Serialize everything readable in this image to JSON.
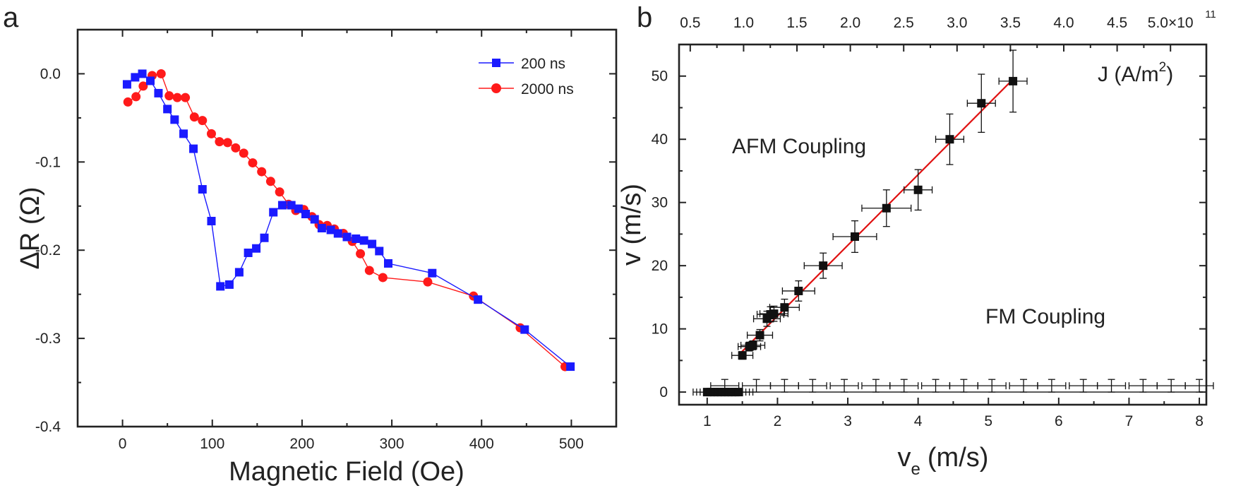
{
  "chart_data": [
    {
      "panel": "a",
      "type": "line",
      "xlabel": "Magnetic Field (Oe)",
      "ylabel": "ΔR (Ω)",
      "xlim": [
        -50,
        550
      ],
      "ylim": [
        -0.4,
        0.05
      ],
      "xticks": [
        0,
        100,
        200,
        300,
        400,
        500
      ],
      "yticks": [
        0.0,
        -0.1,
        -0.2,
        -0.3,
        -0.4
      ],
      "ytick_labels": [
        "0.0",
        "-0.1",
        "-0.2",
        "-0.3",
        "-0.4"
      ],
      "legend_position": "top-right",
      "series": [
        {
          "name": "200 ns",
          "color": "#1a1aff",
          "marker": "square",
          "x": [
            5,
            14,
            22,
            31,
            40,
            50,
            58,
            68,
            79,
            89,
            99,
            109,
            119,
            130,
            140,
            149,
            158,
            168,
            178,
            188,
            196,
            204,
            214,
            222,
            232,
            240,
            250,
            260,
            269,
            278,
            286,
            296,
            345,
            396,
            448,
            499
          ],
          "y": [
            -0.012,
            -0.004,
            0.0,
            -0.008,
            -0.022,
            -0.04,
            -0.052,
            -0.068,
            -0.085,
            -0.131,
            -0.167,
            -0.241,
            -0.239,
            -0.225,
            -0.203,
            -0.198,
            -0.186,
            -0.157,
            -0.149,
            -0.149,
            -0.153,
            -0.159,
            -0.165,
            -0.175,
            -0.177,
            -0.181,
            -0.185,
            -0.187,
            -0.189,
            -0.193,
            -0.201,
            -0.215,
            -0.226,
            -0.256,
            -0.29,
            -0.332
          ]
        },
        {
          "name": "2000 ns",
          "color": "#ff1a1a",
          "marker": "circle",
          "x": [
            6,
            15,
            23,
            33,
            43,
            52,
            61,
            70,
            80,
            89,
            99,
            108,
            117,
            126,
            135,
            145,
            155,
            165,
            175,
            185,
            193,
            202,
            211,
            219,
            228,
            236,
            246,
            256,
            265,
            275,
            290,
            340,
            391,
            443,
            493
          ],
          "y": [
            -0.032,
            -0.026,
            -0.014,
            -0.002,
            0.0,
            -0.025,
            -0.027,
            -0.027,
            -0.049,
            -0.053,
            -0.068,
            -0.077,
            -0.078,
            -0.084,
            -0.09,
            -0.101,
            -0.111,
            -0.122,
            -0.134,
            -0.148,
            -0.155,
            -0.154,
            -0.162,
            -0.171,
            -0.172,
            -0.176,
            -0.181,
            -0.19,
            -0.204,
            -0.223,
            -0.231,
            -0.236,
            -0.252,
            -0.288,
            -0.332
          ]
        }
      ]
    },
    {
      "panel": "b",
      "type": "scatter",
      "xlabel": "v",
      "xlabel_sub": "e",
      "xlabel_unit": "(m/s)",
      "ylabel": "v (m/s)",
      "xlim": [
        0.6,
        8.1
      ],
      "ylim": [
        -2,
        55
      ],
      "xticks": [
        1,
        2,
        3,
        4,
        5,
        6,
        7,
        8
      ],
      "yticks": [
        0,
        10,
        20,
        30,
        40,
        50
      ],
      "top_axis": {
        "label": "J (A/m²)",
        "label_main": "J (A/m",
        "label_sup": "2",
        "label_close": ")",
        "ticks": [
          0.5,
          1.0,
          1.5,
          2.0,
          2.5,
          3.0,
          3.5,
          4.0,
          4.5,
          5.0
        ],
        "tick_labels": [
          "0.5",
          "1.0",
          "1.5",
          "2.0",
          "2.5",
          "3.0",
          "3.5",
          "4.0",
          "4.5",
          "5.0×10"
        ],
        "exponent": "11",
        "ve_per_J": 1.518
      },
      "annotations": [
        "AFM Coupling",
        "FM Coupling"
      ],
      "fit_line": {
        "color": "#e01010",
        "x": [
          1.45,
          5.35
        ],
        "y": [
          5.9,
          49.5
        ]
      },
      "series": [
        {
          "name": "AFM Coupling",
          "color": "#111111",
          "marker": "square",
          "x": [
            1.5,
            1.6,
            1.65,
            1.75,
            1.85,
            1.9,
            1.95,
            2.1,
            2.3,
            2.65,
            3.1,
            3.55,
            4.0,
            4.45,
            4.9,
            5.35
          ],
          "y": [
            5.8,
            7.2,
            7.4,
            9.0,
            11.6,
            12.3,
            12.4,
            13.4,
            16.0,
            20.0,
            24.6,
            29.1,
            32.0,
            40.0,
            45.7,
            49.2
          ],
          "xerr": [
            0.15,
            0.16,
            0.17,
            0.18,
            0.19,
            0.19,
            0.2,
            0.21,
            0.23,
            0.27,
            0.31,
            0.35,
            0.2,
            0.2,
            0.2,
            0.2
          ],
          "yerr": [
            0.6,
            0.7,
            0.7,
            0.9,
            1.2,
            1.2,
            1.2,
            1.3,
            1.6,
            2.0,
            2.5,
            2.9,
            3.2,
            4.0,
            4.6,
            4.9
          ]
        },
        {
          "name": "FM Coupling",
          "color": "#111111",
          "marker": "square",
          "x": [
            1.0,
            1.05,
            1.1,
            1.15,
            1.2,
            1.25,
            1.3,
            1.35,
            1.4,
            1.45
          ],
          "y": [
            0,
            0,
            0,
            0,
            0,
            0,
            0,
            0,
            0,
            0
          ],
          "xerr": [
            0.2,
            0.2,
            0.2,
            0.2,
            0.2,
            0.2,
            0.2,
            0.2,
            0.2,
            0.2
          ],
          "yerr": [
            0,
            0,
            0,
            0,
            0,
            0,
            0,
            0,
            0,
            0
          ]
        },
        {
          "name": "FM Coupling error bars",
          "color": "#111111",
          "marker": "none",
          "x": [
            1.25,
            1.7,
            2.1,
            2.5,
            2.95,
            3.4,
            3.8,
            4.25,
            4.65,
            5.05,
            5.5,
            5.9,
            6.35,
            6.75,
            7.2,
            7.6,
            8.0
          ],
          "y": [
            1.0,
            1.0,
            1.0,
            1.0,
            1.0,
            1.0,
            1.0,
            1.0,
            1.0,
            1.0,
            1.0,
            1.0,
            1.0,
            1.0,
            1.0,
            1.0,
            1.0
          ],
          "xerr": [
            0.2,
            0.2,
            0.2,
            0.2,
            0.2,
            0.2,
            0.2,
            0.2,
            0.2,
            0.2,
            0.2,
            0.2,
            0.2,
            0.2,
            0.2,
            0.2,
            0.2
          ],
          "yerr": [
            1.0,
            1.0,
            1.0,
            1.0,
            1.0,
            1.0,
            1.0,
            1.0,
            1.0,
            1.0,
            1.0,
            1.0,
            1.0,
            1.0,
            1.0,
            1.0,
            1.0
          ]
        }
      ]
    }
  ]
}
